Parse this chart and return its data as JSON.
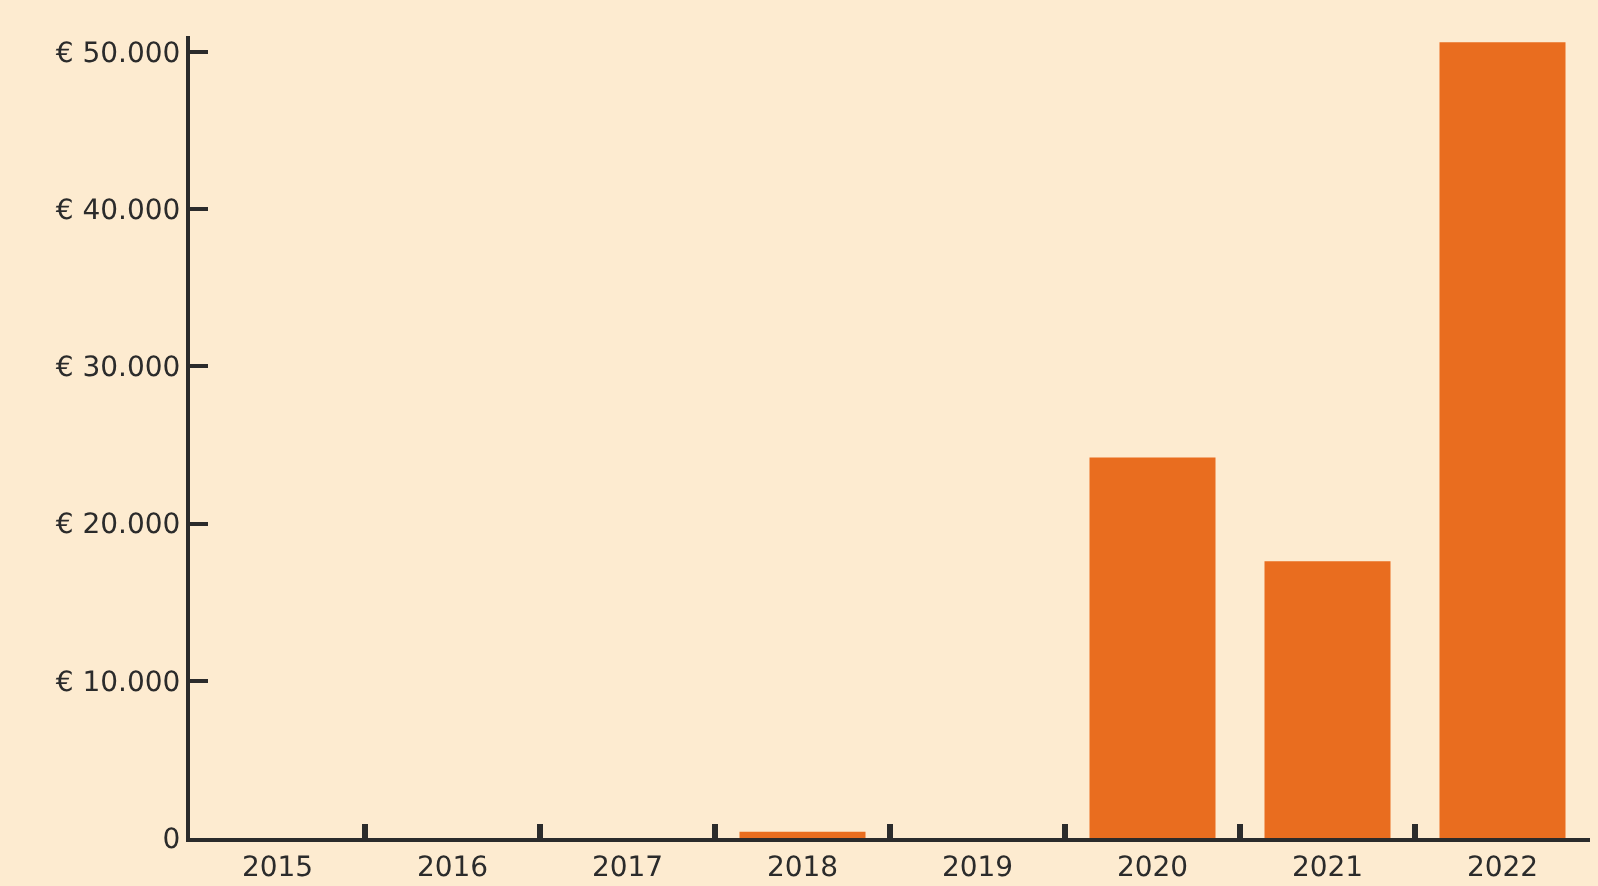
{
  "chart_data": {
    "type": "bar",
    "categories": [
      "2015",
      "2016",
      "2017",
      "2018",
      "2019",
      "2020",
      "2021",
      "2022"
    ],
    "values": [
      0,
      0,
      0,
      400,
      0,
      24200,
      17600,
      50600
    ],
    "color": "#e96d1f",
    "ylim": [
      0,
      51000
    ],
    "yticks": [
      0,
      {
        "value": 10000,
        "label": "€ 10.000"
      },
      {
        "value": 20000,
        "label": "€ 20.000"
      },
      {
        "value": 30000,
        "label": "€ 30.000"
      },
      {
        "value": 40000,
        "label": "€ 40.000"
      },
      {
        "value": 50000,
        "label": "€ 50.000"
      }
    ],
    "grid": false
  }
}
